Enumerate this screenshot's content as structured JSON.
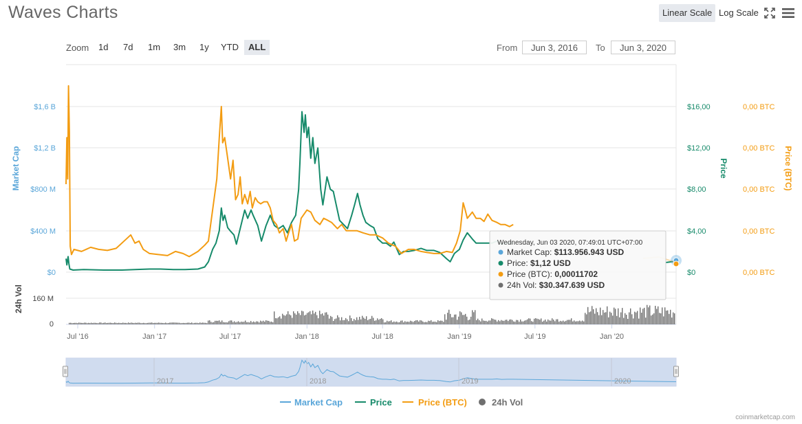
{
  "header": {
    "title": "Waves Charts",
    "linear_label": "Linear Scale",
    "log_label": "Log Scale",
    "fullscreen_icon": "fullscreen-icon",
    "menu_icon": "menu-icon"
  },
  "zoom": {
    "label": "Zoom",
    "buttons": [
      "1d",
      "7d",
      "1m",
      "3m",
      "1y",
      "YTD",
      "ALL"
    ],
    "active": "ALL"
  },
  "range": {
    "from_label": "From",
    "from_value": "Jun 3, 2016",
    "to_label": "To",
    "to_value": "Jun 3, 2020"
  },
  "colors": {
    "market_cap": "#5aa6d9",
    "price": "#168a6a",
    "price_btc": "#f39c12",
    "volume": "#6f6f6f",
    "navigator_fill": "#d0dcef"
  },
  "tooltip": {
    "date": "Wednesday, Jun 03 2020, 07:49:01 UTC+07:00",
    "rows": [
      {
        "label": "Market Cap:",
        "value": "$113.956.943 USD",
        "color": "#5aa6d9"
      },
      {
        "label": "Price:",
        "value": "$1,12 USD",
        "color": "#168a6a"
      },
      {
        "label": "Price (BTC):",
        "value": "0,00011702",
        "color": "#f39c12"
      },
      {
        "label": "24h Vol:",
        "value": "$30.347.639 USD",
        "color": "#6f6f6f"
      }
    ]
  },
  "legend": {
    "market_cap": "Market Cap",
    "price": "Price",
    "price_btc": "Price (BTC)",
    "vol": "24h Vol"
  },
  "credit": "coinmarketcap.com",
  "chart_data": {
    "type": "line",
    "x_tick_labels": [
      "Jul '16",
      "Jan '17",
      "Jul '17",
      "Jan '18",
      "Jul '18",
      "Jan '19",
      "Jul '19",
      "Jan '20"
    ],
    "x_tick_dates": [
      "2016-07-01",
      "2017-01-01",
      "2017-07-01",
      "2018-01-01",
      "2018-07-01",
      "2019-01-01",
      "2019-07-01",
      "2020-01-01"
    ],
    "xlim": [
      "2016-06-03",
      "2020-06-03"
    ],
    "axes": {
      "market_cap": {
        "label": "Market Cap",
        "ticks": [
          "$0",
          "$400 M",
          "$800 M",
          "$1,2 B",
          "$1,6 B"
        ],
        "range": [
          0,
          1600000000
        ]
      },
      "price": {
        "label": "Price",
        "ticks": [
          "$0",
          "$4,00",
          "$8,00",
          "$12,00",
          "$16,00"
        ],
        "range": [
          0,
          16
        ]
      },
      "price_btc": {
        "label": "Price (BTC)",
        "ticks": [
          "0,00 BTC",
          "0,00 BTC",
          "0,00 BTC",
          "0,00 BTC",
          "0,00 BTC"
        ],
        "range": [
          0,
          0.0016
        ]
      },
      "volume": {
        "label": "24h Vol",
        "ticks": [
          "0",
          "160 M"
        ],
        "range": [
          0,
          270000000
        ]
      }
    },
    "navigator_labels": [
      "2017",
      "2018",
      "2019",
      "2020"
    ],
    "navigator_dates": [
      "2017-01-01",
      "2018-01-01",
      "2019-01-01",
      "2020-01-01"
    ],
    "series": [
      {
        "name": "Price",
        "axis": "price",
        "points": [
          [
            "2016-06-03",
            1.3
          ],
          [
            "2016-06-05",
            0.7
          ],
          [
            "2016-06-08",
            1.5
          ],
          [
            "2016-06-10",
            0.8
          ],
          [
            "2016-06-12",
            0.3
          ],
          [
            "2016-06-20",
            0.2
          ],
          [
            "2016-07-15",
            0.25
          ],
          [
            "2016-09-01",
            0.2
          ],
          [
            "2016-10-15",
            0.2
          ],
          [
            "2016-11-15",
            0.25
          ],
          [
            "2016-12-20",
            0.3
          ],
          [
            "2017-01-15",
            0.3
          ],
          [
            "2017-02-15",
            0.25
          ],
          [
            "2017-03-15",
            0.25
          ],
          [
            "2017-04-15",
            0.3
          ],
          [
            "2017-05-01",
            0.5
          ],
          [
            "2017-05-10",
            1.0
          ],
          [
            "2017-05-20",
            2.2
          ],
          [
            "2017-05-28",
            2.8
          ],
          [
            "2017-06-05",
            4.0
          ],
          [
            "2017-06-10",
            6.2
          ],
          [
            "2017-06-14",
            5.0
          ],
          [
            "2017-06-18",
            5.5
          ],
          [
            "2017-06-25",
            4.3
          ],
          [
            "2017-07-01",
            4.0
          ],
          [
            "2017-07-10",
            3.6
          ],
          [
            "2017-07-16",
            2.7
          ],
          [
            "2017-07-25",
            4.2
          ],
          [
            "2017-08-05",
            6.0
          ],
          [
            "2017-08-12",
            5.2
          ],
          [
            "2017-08-20",
            6.0
          ],
          [
            "2017-08-25",
            5.5
          ],
          [
            "2017-09-05",
            4.5
          ],
          [
            "2017-09-14",
            3.0
          ],
          [
            "2017-09-25",
            4.5
          ],
          [
            "2017-10-05",
            5.5
          ],
          [
            "2017-10-15",
            4.5
          ],
          [
            "2017-10-25",
            4.2
          ],
          [
            "2017-11-05",
            4.5
          ],
          [
            "2017-11-15",
            3.8
          ],
          [
            "2017-11-25",
            4.8
          ],
          [
            "2017-12-05",
            5.5
          ],
          [
            "2017-12-12",
            8.0
          ],
          [
            "2017-12-15",
            10.5
          ],
          [
            "2017-12-20",
            15.5
          ],
          [
            "2017-12-25",
            13.5
          ],
          [
            "2017-12-28",
            15.2
          ],
          [
            "2018-01-01",
            13.0
          ],
          [
            "2018-01-05",
            14.0
          ],
          [
            "2018-01-10",
            11.0
          ],
          [
            "2018-01-15",
            13.0
          ],
          [
            "2018-01-20",
            10.5
          ],
          [
            "2018-01-27",
            12.0
          ],
          [
            "2018-02-03",
            8.0
          ],
          [
            "2018-02-08",
            6.5
          ],
          [
            "2018-02-18",
            9.2
          ],
          [
            "2018-02-26",
            8.0
          ],
          [
            "2018-03-05",
            7.8
          ],
          [
            "2018-03-12",
            6.5
          ],
          [
            "2018-03-20",
            5.0
          ],
          [
            "2018-04-01",
            4.5
          ],
          [
            "2018-04-08",
            4.2
          ],
          [
            "2018-04-18",
            5.5
          ],
          [
            "2018-04-25",
            6.5
          ],
          [
            "2018-05-02",
            7.6
          ],
          [
            "2018-05-08",
            6.5
          ],
          [
            "2018-05-15",
            5.5
          ],
          [
            "2018-05-22",
            4.8
          ],
          [
            "2018-06-01",
            4.5
          ],
          [
            "2018-06-10",
            4.3
          ],
          [
            "2018-06-20",
            3.2
          ],
          [
            "2018-07-01",
            2.8
          ],
          [
            "2018-07-10",
            2.8
          ],
          [
            "2018-07-20",
            2.5
          ],
          [
            "2018-07-28",
            2.9
          ],
          [
            "2018-08-10",
            1.7
          ],
          [
            "2018-08-20",
            2.0
          ],
          [
            "2018-09-01",
            2.0
          ],
          [
            "2018-09-15",
            2.1
          ],
          [
            "2018-10-01",
            2.3
          ],
          [
            "2018-10-15",
            2.1
          ],
          [
            "2018-11-01",
            2.1
          ],
          [
            "2018-11-15",
            1.9
          ],
          [
            "2018-12-01",
            1.3
          ],
          [
            "2018-12-10",
            1.0
          ],
          [
            "2018-12-20",
            1.8
          ],
          [
            "2019-01-01",
            2.2
          ],
          [
            "2019-01-10",
            3.1
          ],
          [
            "2019-01-20",
            3.8
          ],
          [
            "2019-02-01",
            3.2
          ],
          [
            "2019-02-10",
            2.8
          ],
          [
            "2019-03-01",
            2.8
          ],
          [
            "2019-03-20",
            2.8
          ],
          [
            "2019-04-01",
            3.0
          ],
          [
            "2019-04-12",
            2.7
          ],
          [
            "2019-04-25",
            2.8
          ],
          [
            "2019-05-10",
            2.8
          ]
        ]
      },
      {
        "name": "Price (BTC)",
        "axis": "price_btc",
        "points": [
          [
            "2016-06-03",
            0.00085
          ],
          [
            "2016-06-05",
            0.0013
          ],
          [
            "2016-06-07",
            0.0009
          ],
          [
            "2016-06-09",
            0.0018
          ],
          [
            "2016-06-11",
            0.00135
          ],
          [
            "2016-06-13",
            0.00025
          ],
          [
            "2016-06-16",
            0.00017
          ],
          [
            "2016-06-22",
            0.00022
          ],
          [
            "2016-07-10",
            0.0002
          ],
          [
            "2016-08-01",
            0.00024
          ],
          [
            "2016-08-20",
            0.00022
          ],
          [
            "2016-09-10",
            0.00021
          ],
          [
            "2016-10-01",
            0.00023
          ],
          [
            "2016-10-20",
            0.0003
          ],
          [
            "2016-11-05",
            0.00036
          ],
          [
            "2016-11-15",
            0.00028
          ],
          [
            "2016-11-25",
            0.0003
          ],
          [
            "2016-12-05",
            0.00022
          ],
          [
            "2016-12-20",
            0.00018
          ],
          [
            "2017-01-10",
            0.00017
          ],
          [
            "2017-02-01",
            0.00016
          ],
          [
            "2017-02-20",
            0.0002
          ],
          [
            "2017-03-10",
            0.00018
          ],
          [
            "2017-03-25",
            0.00015
          ],
          [
            "2017-04-15",
            0.0002
          ],
          [
            "2017-05-01",
            0.00026
          ],
          [
            "2017-05-10",
            0.0003
          ],
          [
            "2017-05-20",
            0.0006
          ],
          [
            "2017-05-30",
            0.0009
          ],
          [
            "2017-06-05",
            0.0013
          ],
          [
            "2017-06-10",
            0.0016
          ],
          [
            "2017-06-13",
            0.00125
          ],
          [
            "2017-06-18",
            0.0013
          ],
          [
            "2017-06-25",
            0.0011
          ],
          [
            "2017-07-02",
            0.0009
          ],
          [
            "2017-07-08",
            0.00108
          ],
          [
            "2017-07-14",
            0.0007
          ],
          [
            "2017-07-20",
            0.00075
          ],
          [
            "2017-07-25",
            0.00092
          ],
          [
            "2017-07-30",
            0.00066
          ],
          [
            "2017-08-05",
            0.00075
          ],
          [
            "2017-08-12",
            0.00066
          ],
          [
            "2017-08-18",
            0.00078
          ],
          [
            "2017-08-23",
            0.00062
          ],
          [
            "2017-08-30",
            0.00072
          ],
          [
            "2017-09-05",
            0.00068
          ],
          [
            "2017-09-12",
            0.00066
          ],
          [
            "2017-09-20",
            0.00068
          ],
          [
            "2017-09-28",
            0.00068
          ],
          [
            "2017-10-05",
            0.00062
          ],
          [
            "2017-10-12",
            0.0005
          ],
          [
            "2017-10-20",
            0.00046
          ],
          [
            "2017-10-27",
            0.00038
          ],
          [
            "2017-11-05",
            0.00042
          ],
          [
            "2017-11-12",
            0.0003
          ],
          [
            "2017-11-18",
            0.00038
          ],
          [
            "2017-11-25",
            0.00046
          ],
          [
            "2017-12-02",
            0.0003
          ],
          [
            "2017-12-10",
            0.00032
          ],
          [
            "2017-12-18",
            0.00052
          ],
          [
            "2017-12-25",
            0.00056
          ],
          [
            "2018-01-01",
            0.0006
          ],
          [
            "2018-01-10",
            0.00058
          ],
          [
            "2018-01-20",
            0.0005
          ],
          [
            "2018-02-01",
            0.00046
          ],
          [
            "2018-02-10",
            0.00052
          ],
          [
            "2018-02-20",
            0.0005
          ],
          [
            "2018-03-01",
            0.00048
          ],
          [
            "2018-03-15",
            0.00042
          ],
          [
            "2018-03-25",
            0.00046
          ],
          [
            "2018-04-05",
            0.0004
          ],
          [
            "2018-04-20",
            0.0004
          ],
          [
            "2018-05-01",
            0.0004
          ],
          [
            "2018-05-15",
            0.00038
          ],
          [
            "2018-06-01",
            0.00036
          ],
          [
            "2018-06-15",
            0.00036
          ],
          [
            "2018-07-01",
            0.00033
          ],
          [
            "2018-07-15",
            0.00028
          ],
          [
            "2018-08-01",
            0.00025
          ],
          [
            "2018-08-15",
            0.00018
          ],
          [
            "2018-09-01",
            0.00022
          ],
          [
            "2018-09-15",
            0.00022
          ],
          [
            "2018-10-01",
            0.0002
          ],
          [
            "2018-10-15",
            0.00019
          ],
          [
            "2018-11-01",
            0.00018
          ],
          [
            "2018-11-15",
            0.00018
          ],
          [
            "2018-12-01",
            0.0002
          ],
          [
            "2018-12-15",
            0.00019
          ],
          [
            "2018-12-25",
            0.00028
          ],
          [
            "2019-01-03",
            0.0004
          ],
          [
            "2019-01-10",
            0.00067
          ],
          [
            "2019-01-15",
            0.0006
          ],
          [
            "2019-01-20",
            0.00052
          ],
          [
            "2019-02-01",
            0.00058
          ],
          [
            "2019-02-10",
            0.00052
          ],
          [
            "2019-02-20",
            0.00052
          ],
          [
            "2019-03-01",
            0.00049
          ],
          [
            "2019-03-10",
            0.00056
          ],
          [
            "2019-03-20",
            0.0005
          ],
          [
            "2019-04-01",
            0.00048
          ],
          [
            "2019-04-10",
            0.00046
          ],
          [
            "2019-04-20",
            0.00046
          ],
          [
            "2019-05-01",
            0.00044
          ],
          [
            "2019-05-10",
            0.00046
          ]
        ]
      }
    ]
  }
}
